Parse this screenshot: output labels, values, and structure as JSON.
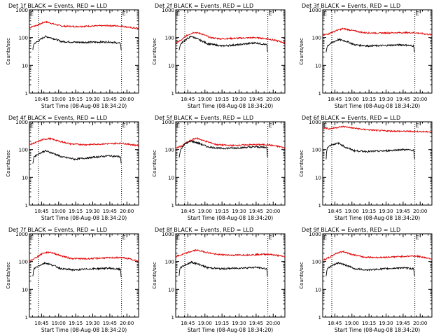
{
  "x_axis_title": "Start Time (08-Aug-08 18:34:20)",
  "y_axis_title": "Counts/sec",
  "x_tick_labels": [
    "18:45",
    "19:00",
    "19:15",
    "19:30",
    "19:45",
    "20:00"
  ],
  "y_tick_labels": [
    "1",
    "10",
    "100",
    "1000"
  ],
  "colors": {
    "events": "#000000",
    "lld": "#e00000",
    "marker": "#000000"
  },
  "chart_data": [
    {
      "type": "line",
      "title": "Det 1f BLACK = Events, RED = LLD",
      "marker_labels": [
        "E",
        "E"
      ],
      "ylim": [
        1,
        1000
      ],
      "yscale": "log",
      "xlim_minutes_after_start": [
        0,
        96
      ],
      "markers_x": [
        8,
        81
      ],
      "series": [
        {
          "name": "LLD",
          "x": [
            0,
            8,
            14,
            20,
            28,
            40,
            55,
            70,
            81,
            90,
            96
          ],
          "values": [
            230,
            290,
            370,
            320,
            260,
            250,
            260,
            270,
            260,
            225,
            215
          ]
        },
        {
          "name": "Events",
          "x": [
            3,
            4,
            8,
            14,
            20,
            28,
            40,
            55,
            70,
            80,
            81
          ],
          "values": [
            35,
            60,
            75,
            110,
            95,
            72,
            68,
            68,
            70,
            62,
            25
          ]
        }
      ]
    },
    {
      "type": "line",
      "title": "Det 2f BLACK = Events, RED = LLD",
      "marker_labels": [
        "E",
        "E"
      ],
      "ylim": [
        1,
        1000
      ],
      "yscale": "log",
      "xlim_minutes_after_start": [
        0,
        96
      ],
      "markers_x": [
        8,
        81
      ],
      "series": [
        {
          "name": "LLD",
          "x": [
            0,
            5,
            10,
            16,
            22,
            30,
            40,
            55,
            70,
            81,
            90,
            96
          ],
          "values": [
            65,
            80,
            120,
            155,
            140,
            100,
            90,
            95,
            100,
            90,
            75,
            65
          ]
        },
        {
          "name": "Events",
          "x": [
            3,
            4,
            8,
            14,
            20,
            28,
            40,
            55,
            70,
            80,
            81
          ],
          "values": [
            35,
            55,
            80,
            110,
            85,
            60,
            50,
            55,
            65,
            55,
            22
          ]
        }
      ]
    },
    {
      "type": "line",
      "title": "Det 3f BLACK = Events, RED = LLD",
      "marker_labels": [
        "E",
        "E"
      ],
      "ylim": [
        1,
        1000
      ],
      "yscale": "log",
      "xlim_minutes_after_start": [
        0,
        96
      ],
      "markers_x": [
        8,
        81
      ],
      "series": [
        {
          "name": "LLD",
          "x": [
            0,
            6,
            12,
            18,
            26,
            36,
            50,
            65,
            81,
            90,
            96
          ],
          "values": [
            120,
            140,
            180,
            210,
            180,
            150,
            145,
            150,
            150,
            135,
            125
          ]
        },
        {
          "name": "Events",
          "x": [
            3,
            4,
            8,
            14,
            20,
            28,
            40,
            55,
            70,
            80,
            81
          ],
          "values": [
            30,
            50,
            65,
            85,
            75,
            55,
            50,
            52,
            55,
            50,
            20
          ]
        }
      ]
    },
    {
      "type": "line",
      "title": "Det 4f BLACK = Events, RED = LLD",
      "marker_labels": [
        "E",
        "E"
      ],
      "ylim": [
        1,
        1000
      ],
      "yscale": "log",
      "xlim_minutes_after_start": [
        0,
        96
      ],
      "markers_x": [
        8,
        81
      ],
      "series": [
        {
          "name": "LLD",
          "x": [
            0,
            6,
            12,
            18,
            26,
            36,
            50,
            65,
            81,
            90,
            96
          ],
          "values": [
            150,
            180,
            230,
            250,
            200,
            160,
            150,
            160,
            170,
            150,
            140
          ]
        },
        {
          "name": "Events",
          "x": [
            3,
            4,
            8,
            14,
            20,
            28,
            40,
            55,
            70,
            80,
            81
          ],
          "values": [
            30,
            55,
            70,
            90,
            75,
            55,
            45,
            52,
            60,
            55,
            20
          ]
        }
      ]
    },
    {
      "type": "line",
      "title": "Det 5f BLACK = Events, RED = LLD",
      "marker_labels": [
        "E",
        "E"
      ],
      "ylim": [
        1,
        1000
      ],
      "yscale": "log",
      "xlim_minutes_after_start": [
        0,
        96
      ],
      "markers_x": [
        8,
        81
      ],
      "series": [
        {
          "name": "LLD",
          "x": [
            0,
            6,
            12,
            18,
            26,
            36,
            50,
            65,
            81,
            90,
            96
          ],
          "values": [
            110,
            140,
            200,
            260,
            200,
            150,
            140,
            150,
            150,
            130,
            115
          ]
        },
        {
          "name": "Events",
          "x": [
            3,
            4,
            8,
            14,
            20,
            28,
            40,
            55,
            70,
            80,
            81
          ],
          "values": [
            50,
            90,
            160,
            200,
            170,
            125,
            110,
            115,
            125,
            120,
            22
          ]
        }
      ]
    },
    {
      "type": "line",
      "title": "Det 6f BLACK = Events, RED = LLD",
      "marker_labels": [
        "E",
        "E"
      ],
      "ylim": [
        1,
        1000
      ],
      "yscale": "log",
      "xlim_minutes_after_start": [
        0,
        96
      ],
      "markers_x": [
        8,
        81
      ],
      "series": [
        {
          "name": "LLD",
          "x": [
            0,
            6,
            12,
            18,
            26,
            36,
            50,
            65,
            81,
            90,
            96
          ],
          "values": [
            620,
            560,
            620,
            680,
            600,
            530,
            480,
            460,
            450,
            440,
            430
          ]
        },
        {
          "name": "Events",
          "x": [
            3,
            4,
            8,
            14,
            20,
            28,
            40,
            55,
            70,
            80,
            81
          ],
          "values": [
            45,
            120,
            150,
            170,
            120,
            90,
            85,
            90,
            100,
            95,
            20
          ]
        }
      ]
    },
    {
      "type": "line",
      "title": "Det 7f BLACK = Events, RED = LLD",
      "marker_labels": [
        "E",
        "E"
      ],
      "ylim": [
        1,
        1000
      ],
      "yscale": "log",
      "xlim_minutes_after_start": [
        0,
        96
      ],
      "markers_x": [
        8,
        81
      ],
      "series": [
        {
          "name": "LLD",
          "x": [
            0,
            6,
            12,
            18,
            26,
            36,
            50,
            65,
            81,
            90,
            96
          ],
          "values": [
            100,
            140,
            200,
            220,
            170,
            130,
            125,
            135,
            140,
            120,
            100
          ]
        },
        {
          "name": "Events",
          "x": [
            3,
            4,
            8,
            14,
            20,
            28,
            40,
            55,
            70,
            80,
            81
          ],
          "values": [
            28,
            55,
            70,
            90,
            75,
            55,
            50,
            55,
            58,
            52,
            18
          ]
        }
      ]
    },
    {
      "type": "line",
      "title": "Det 8f BLACK = Events, RED = LLD",
      "marker_labels": [
        "E",
        "E"
      ],
      "ylim": [
        1,
        1000
      ],
      "yscale": "log",
      "xlim_minutes_after_start": [
        0,
        96
      ],
      "markers_x": [
        8,
        81
      ],
      "series": [
        {
          "name": "LLD",
          "x": [
            0,
            6,
            12,
            18,
            26,
            36,
            50,
            65,
            81,
            90,
            96
          ],
          "values": [
            150,
            180,
            220,
            260,
            220,
            180,
            170,
            175,
            185,
            165,
            150
          ]
        },
        {
          "name": "Events",
          "x": [
            3,
            4,
            8,
            14,
            20,
            28,
            40,
            55,
            70,
            80,
            81
          ],
          "values": [
            30,
            60,
            75,
            95,
            80,
            60,
            55,
            58,
            62,
            55,
            20
          ]
        }
      ]
    },
    {
      "type": "line",
      "title": "Det 9f BLACK = Events, RED = LLD",
      "marker_labels": [
        "E",
        "E"
      ],
      "ylim": [
        1,
        1000
      ],
      "yscale": "log",
      "xlim_minutes_after_start": [
        0,
        96
      ],
      "markers_x": [
        8,
        81
      ],
      "series": [
        {
          "name": "LLD",
          "x": [
            0,
            6,
            12,
            18,
            26,
            36,
            50,
            65,
            81,
            90,
            96
          ],
          "values": [
            110,
            140,
            200,
            230,
            180,
            145,
            140,
            150,
            160,
            140,
            125
          ]
        },
        {
          "name": "Events",
          "x": [
            3,
            4,
            8,
            14,
            20,
            28,
            40,
            55,
            70,
            80,
            81
          ],
          "values": [
            30,
            55,
            70,
            90,
            75,
            55,
            50,
            55,
            60,
            55,
            20
          ]
        }
      ]
    }
  ]
}
